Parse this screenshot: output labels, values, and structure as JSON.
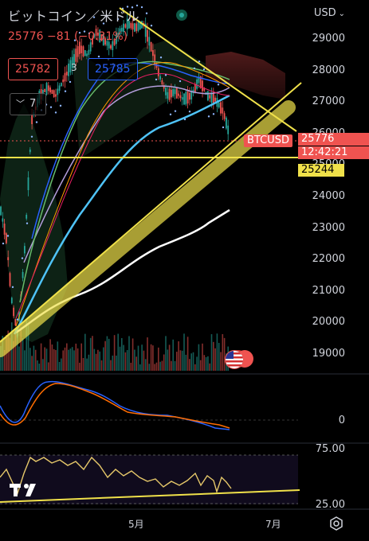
{
  "header": {
    "symbol_title": "ビットコイン／米ドル",
    "currency": "USD",
    "last_price": "25776",
    "change": "−81",
    "change_pct": "(−0.31%)",
    "bid": "25782",
    "spread": "3",
    "ask": "25785",
    "indicator_count": "7"
  },
  "price_axis": {
    "labels": [
      "29000",
      "28000",
      "27000",
      "26000",
      "25000",
      "24000",
      "23000",
      "22000",
      "21000",
      "20000",
      "19000"
    ]
  },
  "price_tags": {
    "symbol": "BTCUSD",
    "price": "25776",
    "countdown": "12:42:21",
    "line_level": "25244"
  },
  "macd_axis": {
    "zero": "0"
  },
  "rsi_axis": {
    "upper": "75.00",
    "lower": "25.00"
  },
  "time_axis": {
    "labels": [
      "5月",
      "7月"
    ]
  },
  "colors": {
    "up": "#26a69a",
    "down": "#ef5350",
    "trendline": "#f0e14a",
    "ask": "#2962ff"
  },
  "icons": {
    "settings": "gear-icon",
    "dropdown": "chevron-down-icon",
    "collapse": "chevron-up-icon",
    "logo": "tradingview-logo",
    "event": "us-flag-icon"
  }
}
